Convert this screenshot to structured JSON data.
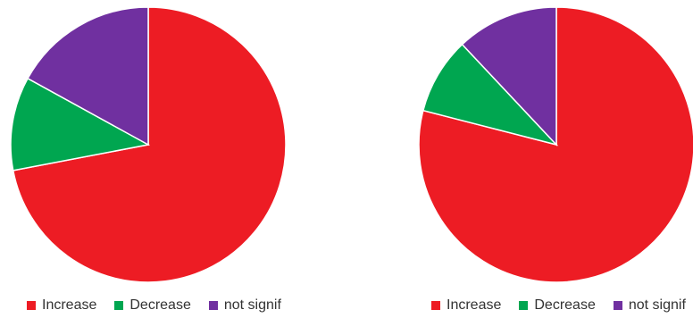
{
  "chart_data": [
    {
      "type": "pie",
      "start_angle_deg": 90,
      "direction": "clockwise",
      "slices": [
        {
          "label": "Increase",
          "value": 72,
          "color": "#ed1c24"
        },
        {
          "label": "Decrease",
          "value": 11,
          "color": "#00a650"
        },
        {
          "label": "not signif",
          "value": 17,
          "color": "#7030a0"
        }
      ],
      "legend": {
        "position": "bottom",
        "items": [
          "Increase",
          "Decrease",
          "not signif"
        ]
      }
    },
    {
      "type": "pie",
      "start_angle_deg": 90,
      "direction": "clockwise",
      "slices": [
        {
          "label": "Increase",
          "value": 79,
          "color": "#ed1c24"
        },
        {
          "label": "Decrease",
          "value": 9,
          "color": "#00a650"
        },
        {
          "label": "not signif",
          "value": 12,
          "color": "#7030a0"
        }
      ],
      "legend": {
        "position": "bottom",
        "items": [
          "Increase",
          "Decrease",
          "not signif"
        ]
      }
    }
  ]
}
